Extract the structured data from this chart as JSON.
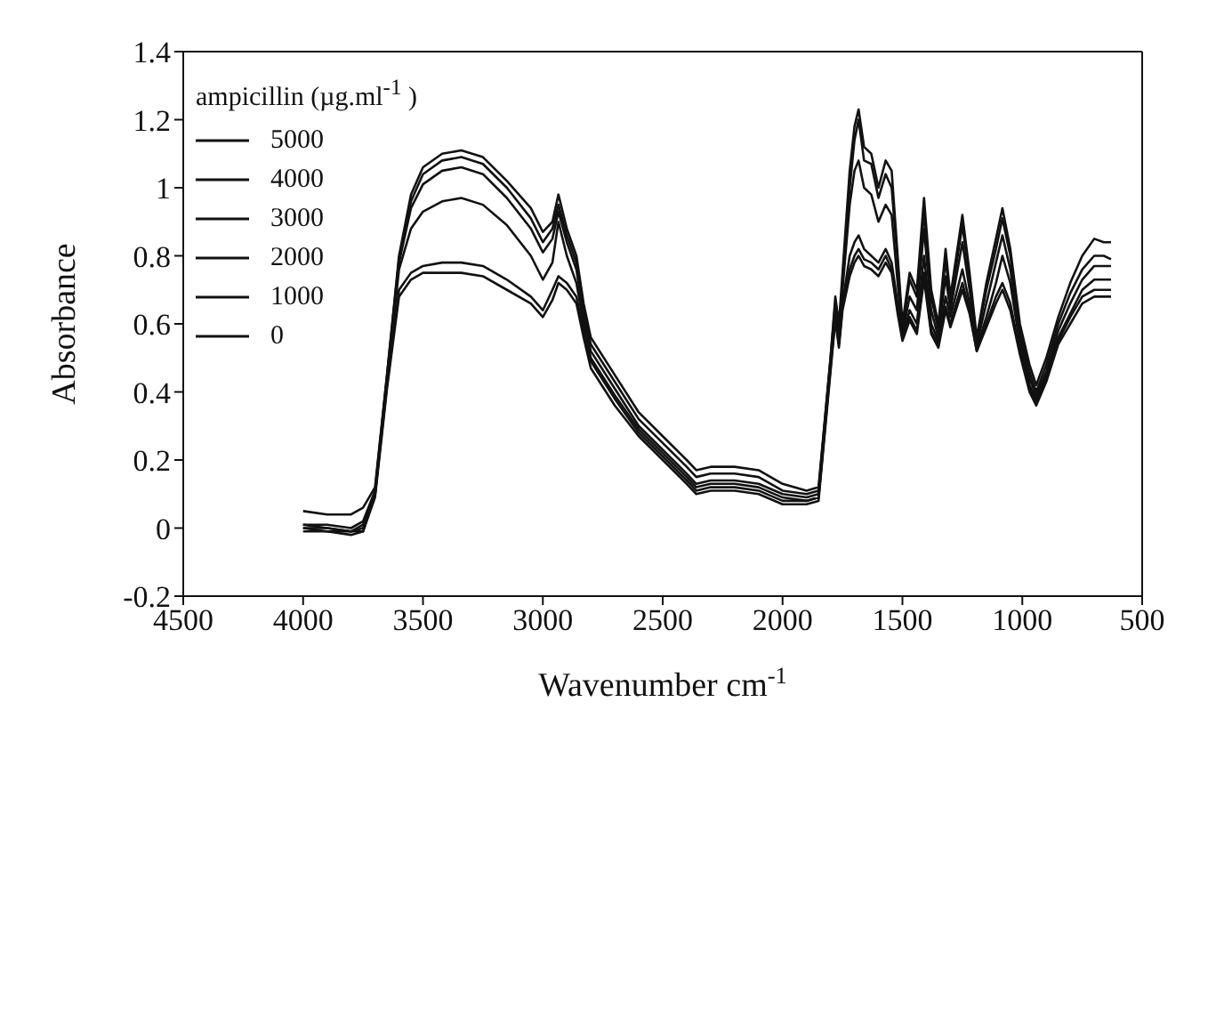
{
  "chart_data": {
    "type": "line",
    "xlabel": "Wavenumber cm$^{-1}$",
    "ylabel": "Absorbance",
    "legend_title": "ampicillin (µg.ml$^{-1}$ )",
    "legend": "top left",
    "marker": "none",
    "line_style": "solid",
    "xlim": [
      4500,
      500
    ],
    "xticks": [
      4500,
      4000,
      3500,
      3000,
      2500,
      2000,
      1500,
      1000,
      500
    ],
    "ylim": [
      -0.2,
      1.4
    ],
    "yticks": [
      -0.2,
      0,
      0.2,
      0.4,
      0.6,
      0.8,
      1,
      1.2,
      1.4
    ],
    "x": [
      4000,
      3900,
      3800,
      3750,
      3700,
      3650,
      3600,
      3550,
      3500,
      3420,
      3340,
      3250,
      3150,
      3050,
      3000,
      2960,
      2935,
      2900,
      2860,
      2830,
      2800,
      2700,
      2600,
      2500,
      2400,
      2360,
      2300,
      2200,
      2100,
      2000,
      1900,
      1850,
      1800,
      1780,
      1765,
      1750,
      1720,
      1700,
      1683,
      1660,
      1630,
      1600,
      1570,
      1545,
      1520,
      1500,
      1470,
      1440,
      1410,
      1380,
      1350,
      1320,
      1300,
      1250,
      1220,
      1190,
      1150,
      1110,
      1083,
      1050,
      1010,
      970,
      942,
      900,
      850,
      800,
      750,
      700,
      660,
      630
    ],
    "series": [
      {
        "name": "5000",
        "color": "#111111",
        "values": [
          0.05,
          0.04,
          0.04,
          0.06,
          0.12,
          0.45,
          0.8,
          0.98,
          1.06,
          1.1,
          1.11,
          1.09,
          1.02,
          0.94,
          0.87,
          0.9,
          0.98,
          0.88,
          0.8,
          0.66,
          0.56,
          0.45,
          0.34,
          0.27,
          0.2,
          0.17,
          0.18,
          0.18,
          0.17,
          0.13,
          0.11,
          0.12,
          0.5,
          0.68,
          0.6,
          0.75,
          1.05,
          1.18,
          1.23,
          1.12,
          1.1,
          1.0,
          1.08,
          1.05,
          0.8,
          0.6,
          0.75,
          0.7,
          0.97,
          0.7,
          0.6,
          0.82,
          0.68,
          0.92,
          0.75,
          0.56,
          0.72,
          0.85,
          0.94,
          0.82,
          0.6,
          0.48,
          0.42,
          0.5,
          0.62,
          0.72,
          0.8,
          0.85,
          0.84,
          0.84
        ]
      },
      {
        "name": "4000",
        "color": "#111111",
        "values": [
          0.01,
          0.01,
          0.0,
          0.02,
          0.11,
          0.45,
          0.79,
          0.96,
          1.04,
          1.08,
          1.09,
          1.07,
          1.0,
          0.91,
          0.84,
          0.88,
          0.95,
          0.86,
          0.78,
          0.64,
          0.54,
          0.43,
          0.32,
          0.25,
          0.18,
          0.15,
          0.16,
          0.16,
          0.15,
          0.11,
          0.1,
          0.11,
          0.5,
          0.66,
          0.58,
          0.72,
          1.0,
          1.14,
          1.2,
          1.08,
          1.07,
          0.97,
          1.04,
          1.0,
          0.78,
          0.58,
          0.73,
          0.68,
          0.93,
          0.68,
          0.58,
          0.79,
          0.66,
          0.89,
          0.73,
          0.55,
          0.7,
          0.82,
          0.91,
          0.8,
          0.58,
          0.46,
          0.4,
          0.48,
          0.6,
          0.69,
          0.76,
          0.8,
          0.8,
          0.79
        ]
      },
      {
        "name": "3000",
        "color": "#111111",
        "values": [
          0.0,
          0.0,
          -0.01,
          0.01,
          0.1,
          0.44,
          0.78,
          0.94,
          1.01,
          1.05,
          1.06,
          1.04,
          0.97,
          0.88,
          0.81,
          0.85,
          0.93,
          0.84,
          0.76,
          0.62,
          0.52,
          0.41,
          0.3,
          0.23,
          0.16,
          0.13,
          0.14,
          0.14,
          0.13,
          0.1,
          0.09,
          0.1,
          0.49,
          0.64,
          0.57,
          0.7,
          0.95,
          1.05,
          1.08,
          1.0,
          0.98,
          0.9,
          0.95,
          0.92,
          0.72,
          0.57,
          0.68,
          0.64,
          0.88,
          0.64,
          0.56,
          0.74,
          0.64,
          0.84,
          0.7,
          0.54,
          0.66,
          0.78,
          0.86,
          0.76,
          0.56,
          0.44,
          0.39,
          0.46,
          0.58,
          0.66,
          0.73,
          0.77,
          0.77,
          0.77
        ]
      },
      {
        "name": "2000",
        "color": "#111111",
        "values": [
          0.0,
          -0.01,
          -0.01,
          0.0,
          0.1,
          0.43,
          0.76,
          0.88,
          0.93,
          0.96,
          0.97,
          0.95,
          0.89,
          0.8,
          0.73,
          0.78,
          0.9,
          0.8,
          0.72,
          0.6,
          0.5,
          0.39,
          0.29,
          0.22,
          0.15,
          0.12,
          0.13,
          0.13,
          0.12,
          0.09,
          0.08,
          0.09,
          0.48,
          0.63,
          0.55,
          0.66,
          0.8,
          0.84,
          0.86,
          0.82,
          0.8,
          0.78,
          0.82,
          0.78,
          0.66,
          0.56,
          0.64,
          0.6,
          0.8,
          0.6,
          0.55,
          0.68,
          0.62,
          0.76,
          0.66,
          0.53,
          0.62,
          0.72,
          0.8,
          0.72,
          0.54,
          0.42,
          0.38,
          0.45,
          0.56,
          0.63,
          0.7,
          0.73,
          0.73,
          0.73
        ]
      },
      {
        "name": "1000",
        "color": "#111111",
        "values": [
          -0.01,
          -0.01,
          -0.02,
          -0.01,
          0.1,
          0.42,
          0.7,
          0.75,
          0.77,
          0.78,
          0.78,
          0.77,
          0.73,
          0.68,
          0.64,
          0.7,
          0.74,
          0.72,
          0.68,
          0.58,
          0.49,
          0.38,
          0.28,
          0.21,
          0.14,
          0.11,
          0.12,
          0.12,
          0.11,
          0.08,
          0.08,
          0.09,
          0.47,
          0.62,
          0.54,
          0.65,
          0.76,
          0.8,
          0.82,
          0.79,
          0.78,
          0.76,
          0.8,
          0.76,
          0.64,
          0.56,
          0.62,
          0.58,
          0.75,
          0.58,
          0.54,
          0.65,
          0.6,
          0.72,
          0.64,
          0.52,
          0.6,
          0.68,
          0.72,
          0.66,
          0.52,
          0.41,
          0.37,
          0.44,
          0.55,
          0.62,
          0.68,
          0.7,
          0.7,
          0.7
        ]
      },
      {
        "name": "0",
        "color": "#111111",
        "values": [
          0.01,
          0.0,
          -0.01,
          -0.01,
          0.09,
          0.41,
          0.68,
          0.73,
          0.75,
          0.75,
          0.75,
          0.74,
          0.7,
          0.66,
          0.62,
          0.67,
          0.72,
          0.7,
          0.66,
          0.56,
          0.47,
          0.36,
          0.27,
          0.2,
          0.13,
          0.1,
          0.11,
          0.11,
          0.1,
          0.07,
          0.07,
          0.08,
          0.46,
          0.61,
          0.53,
          0.64,
          0.74,
          0.78,
          0.8,
          0.77,
          0.76,
          0.74,
          0.78,
          0.75,
          0.63,
          0.55,
          0.61,
          0.57,
          0.73,
          0.57,
          0.53,
          0.64,
          0.59,
          0.7,
          0.63,
          0.52,
          0.59,
          0.66,
          0.7,
          0.64,
          0.51,
          0.4,
          0.36,
          0.43,
          0.54,
          0.6,
          0.66,
          0.68,
          0.68,
          0.68
        ]
      }
    ]
  }
}
